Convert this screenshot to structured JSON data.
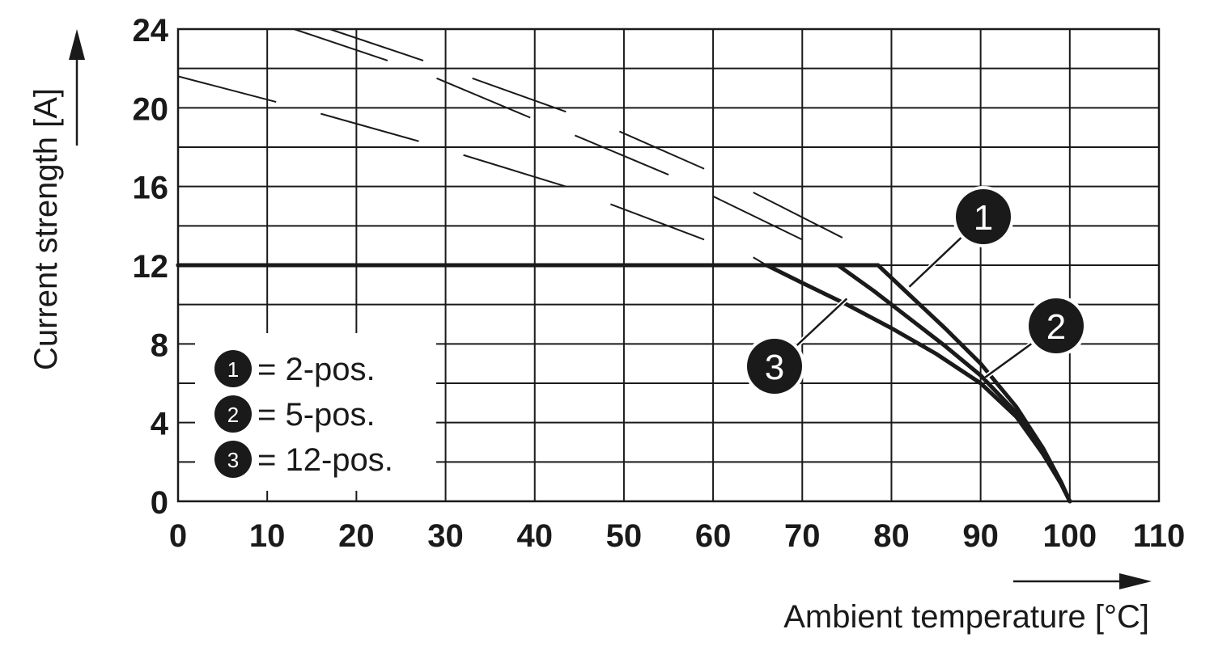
{
  "chart_data": {
    "type": "line",
    "xlabel": "Ambient temperature [°C]",
    "ylabel": "Current strength [A]",
    "xlim": [
      0,
      110
    ],
    "ylim": [
      0,
      24
    ],
    "xticks": [
      0,
      10,
      20,
      30,
      40,
      50,
      60,
      70,
      80,
      90,
      100,
      110
    ],
    "yticks": [
      0,
      4,
      8,
      12,
      16,
      20,
      24
    ],
    "grid": true,
    "legend_position": "bottom-left",
    "legend": [
      {
        "marker": "1",
        "label": "= 2-pos."
      },
      {
        "marker": "2",
        "label": "= 5-pos."
      },
      {
        "marker": "3",
        "label": "= 12-pos."
      }
    ],
    "series": [
      {
        "name": "1",
        "x": [
          0,
          78.5,
          82,
          86,
          90,
          94,
          97,
          99,
          100
        ],
        "y": [
          12,
          12,
          10.5,
          8.8,
          7.0,
          4.8,
          2.7,
          1.0,
          0
        ]
      },
      {
        "name": "2",
        "x": [
          0,
          74,
          78,
          82,
          86,
          90,
          94,
          97,
          99,
          100
        ],
        "y": [
          12,
          12,
          10.7,
          9.3,
          7.9,
          6.4,
          4.5,
          2.4,
          0.9,
          0
        ]
      },
      {
        "name": "3",
        "x": [
          0,
          66,
          70,
          75,
          80,
          85,
          90,
          94,
          97,
          99,
          100
        ],
        "y": [
          12,
          12,
          11.1,
          10.0,
          8.8,
          7.5,
          6.0,
          4.3,
          2.4,
          1.0,
          0
        ]
      }
    ],
    "colors": {
      "line": "#1a1a1a",
      "grid": "#1a1a1a",
      "marker_fill": "#1a1a1a"
    }
  }
}
